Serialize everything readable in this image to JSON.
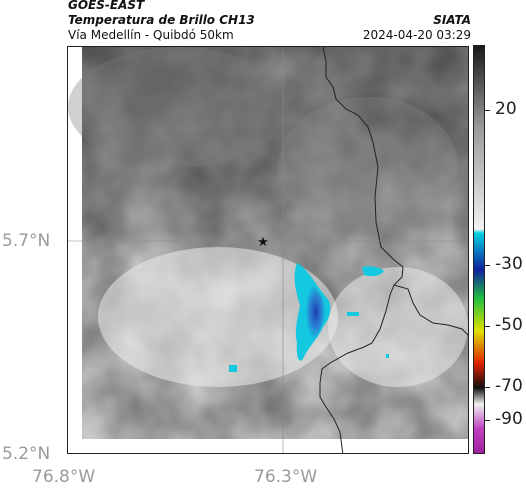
{
  "header": {
    "source": "GOES-EAST",
    "product": "Temperatura de Brillo CH13",
    "region": "Vía Medellín - Quibdó 50km",
    "org": "SIATA",
    "datetime": "2024-04-20 03:29"
  },
  "map": {
    "lat_labels": [
      "5.7°N",
      "5.2°N"
    ],
    "lon_labels": [
      "76.8°W",
      "76.3°W"
    ],
    "marker": "star-marker",
    "basemap": "grayscale brightness-temperature field with cyan/blue cold cloud cluster",
    "gridlines": true
  },
  "colorbar": {
    "ticks": [
      "20",
      "-30",
      "-50",
      "-70",
      "-90"
    ],
    "colors": {
      "warm_top": "#1a1a1a",
      "warm_mid": "#9a9a9a",
      "warm_bottom": "#f2f2f2",
      "cyan": "#00d0e0",
      "blue": "#1020a0",
      "green": "#20c040",
      "yellow": "#e0e000",
      "red": "#e02000",
      "black": "#101010",
      "magenta": "#c040c0"
    }
  }
}
